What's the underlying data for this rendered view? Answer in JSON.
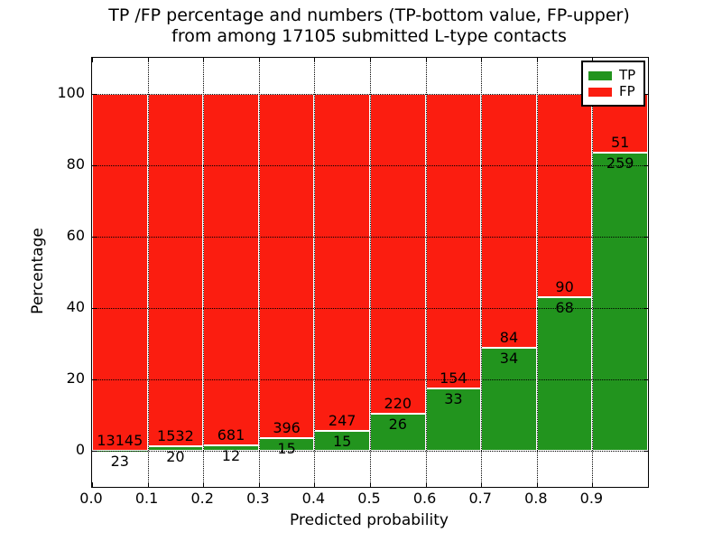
{
  "title": {
    "line1": "TP /FP percentage and numbers (TP-bottom value, FP-upper)",
    "line2": "from among 17105 submitted L-type contacts"
  },
  "axes": {
    "xlabel": "Predicted probability",
    "ylabel": "Percentage",
    "xtick_labels": [
      "0.0",
      "0.1",
      "0.2",
      "0.3",
      "0.4",
      "0.5",
      "0.6",
      "0.7",
      "0.8",
      "0.9"
    ],
    "ytick_labels": [
      "0",
      "20",
      "40",
      "60",
      "80",
      "100"
    ],
    "ytick_values": [
      0,
      20,
      40,
      60,
      80,
      100
    ],
    "ylim": [
      -10,
      110
    ],
    "grid": "dotted"
  },
  "legend": {
    "items": [
      {
        "label": "TP",
        "color": "#22941e"
      },
      {
        "label": "FP",
        "color": "#fb1d10"
      }
    ]
  },
  "colors": {
    "tp": "#22941e",
    "fp": "#fb1d10",
    "bar_edge": "#ffffff"
  },
  "chart_data": {
    "type": "bar",
    "stacked": true,
    "title": "TP /FP percentage and numbers (TP-bottom value, FP-upper) from among 17105 submitted L-type contacts",
    "xlabel": "Predicted probability",
    "ylabel": "Percentage",
    "ylim": [
      -10,
      110
    ],
    "total_contacts": 17105,
    "categories": [
      "0.0-0.1",
      "0.1-0.2",
      "0.2-0.3",
      "0.3-0.4",
      "0.4-0.5",
      "0.5-0.6",
      "0.6-0.7",
      "0.7-0.8",
      "0.8-0.9",
      "0.9-1.0"
    ],
    "series": [
      {
        "name": "TP",
        "counts": [
          23,
          20,
          12,
          15,
          15,
          26,
          33,
          34,
          68,
          259
        ]
      },
      {
        "name": "FP",
        "counts": [
          13145,
          1532,
          681,
          396,
          247,
          220,
          154,
          84,
          90,
          51
        ]
      }
    ],
    "tp_percent": [
      0.1747,
      1.2887,
      1.7316,
      3.6496,
      5.7252,
      10.5691,
      17.6471,
      28.8136,
      43.038,
      83.5484
    ]
  }
}
